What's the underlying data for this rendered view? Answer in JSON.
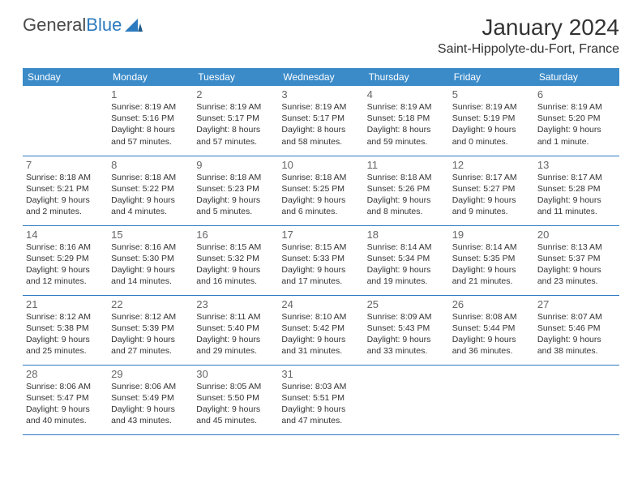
{
  "logo": {
    "part1": "General",
    "part2": "Blue"
  },
  "title": "January 2024",
  "location": "Saint-Hippolyte-du-Fort, France",
  "dayHeaders": [
    "Sunday",
    "Monday",
    "Tuesday",
    "Wednesday",
    "Thursday",
    "Friday",
    "Saturday"
  ],
  "colors": {
    "headerBg": "#3b8bc9",
    "headerText": "#ffffff",
    "border": "#2d7bbf",
    "dayNum": "#666666",
    "text": "#333333",
    "logoGray": "#4a4a4a",
    "logoBlue": "#2d7bbf",
    "background": "#ffffff"
  },
  "weeks": [
    [
      null,
      {
        "n": "1",
        "sr": "8:19 AM",
        "ss": "5:16 PM",
        "dl": "8 hours and 57 minutes."
      },
      {
        "n": "2",
        "sr": "8:19 AM",
        "ss": "5:17 PM",
        "dl": "8 hours and 57 minutes."
      },
      {
        "n": "3",
        "sr": "8:19 AM",
        "ss": "5:17 PM",
        "dl": "8 hours and 58 minutes."
      },
      {
        "n": "4",
        "sr": "8:19 AM",
        "ss": "5:18 PM",
        "dl": "8 hours and 59 minutes."
      },
      {
        "n": "5",
        "sr": "8:19 AM",
        "ss": "5:19 PM",
        "dl": "9 hours and 0 minutes."
      },
      {
        "n": "6",
        "sr": "8:19 AM",
        "ss": "5:20 PM",
        "dl": "9 hours and 1 minute."
      }
    ],
    [
      {
        "n": "7",
        "sr": "8:18 AM",
        "ss": "5:21 PM",
        "dl": "9 hours and 2 minutes."
      },
      {
        "n": "8",
        "sr": "8:18 AM",
        "ss": "5:22 PM",
        "dl": "9 hours and 4 minutes."
      },
      {
        "n": "9",
        "sr": "8:18 AM",
        "ss": "5:23 PM",
        "dl": "9 hours and 5 minutes."
      },
      {
        "n": "10",
        "sr": "8:18 AM",
        "ss": "5:25 PM",
        "dl": "9 hours and 6 minutes."
      },
      {
        "n": "11",
        "sr": "8:18 AM",
        "ss": "5:26 PM",
        "dl": "9 hours and 8 minutes."
      },
      {
        "n": "12",
        "sr": "8:17 AM",
        "ss": "5:27 PM",
        "dl": "9 hours and 9 minutes."
      },
      {
        "n": "13",
        "sr": "8:17 AM",
        "ss": "5:28 PM",
        "dl": "9 hours and 11 minutes."
      }
    ],
    [
      {
        "n": "14",
        "sr": "8:16 AM",
        "ss": "5:29 PM",
        "dl": "9 hours and 12 minutes."
      },
      {
        "n": "15",
        "sr": "8:16 AM",
        "ss": "5:30 PM",
        "dl": "9 hours and 14 minutes."
      },
      {
        "n": "16",
        "sr": "8:15 AM",
        "ss": "5:32 PM",
        "dl": "9 hours and 16 minutes."
      },
      {
        "n": "17",
        "sr": "8:15 AM",
        "ss": "5:33 PM",
        "dl": "9 hours and 17 minutes."
      },
      {
        "n": "18",
        "sr": "8:14 AM",
        "ss": "5:34 PM",
        "dl": "9 hours and 19 minutes."
      },
      {
        "n": "19",
        "sr": "8:14 AM",
        "ss": "5:35 PM",
        "dl": "9 hours and 21 minutes."
      },
      {
        "n": "20",
        "sr": "8:13 AM",
        "ss": "5:37 PM",
        "dl": "9 hours and 23 minutes."
      }
    ],
    [
      {
        "n": "21",
        "sr": "8:12 AM",
        "ss": "5:38 PM",
        "dl": "9 hours and 25 minutes."
      },
      {
        "n": "22",
        "sr": "8:12 AM",
        "ss": "5:39 PM",
        "dl": "9 hours and 27 minutes."
      },
      {
        "n": "23",
        "sr": "8:11 AM",
        "ss": "5:40 PM",
        "dl": "9 hours and 29 minutes."
      },
      {
        "n": "24",
        "sr": "8:10 AM",
        "ss": "5:42 PM",
        "dl": "9 hours and 31 minutes."
      },
      {
        "n": "25",
        "sr": "8:09 AM",
        "ss": "5:43 PM",
        "dl": "9 hours and 33 minutes."
      },
      {
        "n": "26",
        "sr": "8:08 AM",
        "ss": "5:44 PM",
        "dl": "9 hours and 36 minutes."
      },
      {
        "n": "27",
        "sr": "8:07 AM",
        "ss": "5:46 PM",
        "dl": "9 hours and 38 minutes."
      }
    ],
    [
      {
        "n": "28",
        "sr": "8:06 AM",
        "ss": "5:47 PM",
        "dl": "9 hours and 40 minutes."
      },
      {
        "n": "29",
        "sr": "8:06 AM",
        "ss": "5:49 PM",
        "dl": "9 hours and 43 minutes."
      },
      {
        "n": "30",
        "sr": "8:05 AM",
        "ss": "5:50 PM",
        "dl": "9 hours and 45 minutes."
      },
      {
        "n": "31",
        "sr": "8:03 AM",
        "ss": "5:51 PM",
        "dl": "9 hours and 47 minutes."
      },
      null,
      null,
      null
    ]
  ],
  "labels": {
    "sunrise": "Sunrise:",
    "sunset": "Sunset:",
    "daylight": "Daylight:"
  }
}
